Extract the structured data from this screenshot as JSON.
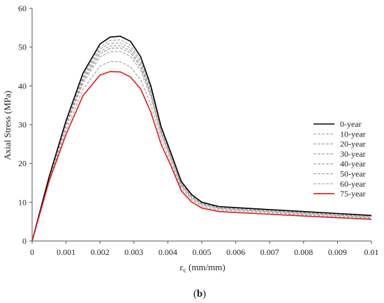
{
  "chart_data": {
    "type": "line",
    "title": "",
    "xlabel": "εc (mm/mm)",
    "ylabel": "Axial Stress  (MPa)",
    "xlim": [
      0,
      0.01
    ],
    "ylim": [
      0,
      60
    ],
    "x_ticks": [
      0,
      0.001,
      0.002,
      0.003,
      0.004,
      0.005,
      0.006,
      0.007,
      0.008,
      0.009,
      0.01
    ],
    "x_tick_labels": [
      "0",
      "0.001",
      "0.002",
      "0.003",
      "0.004",
      "0.005",
      "0.006",
      "0.007",
      "0.008",
      "0.009",
      "0.01"
    ],
    "y_ticks": [
      0,
      10,
      20,
      30,
      40,
      50,
      60
    ],
    "y_tick_labels": [
      "0",
      "10",
      "20",
      "30",
      "40",
      "50",
      "60"
    ],
    "grid": false,
    "legend_position": "right",
    "panel_label": "(b)",
    "panel_label_bold": "b",
    "x": [
      0,
      0.0005,
      0.001,
      0.0015,
      0.002,
      0.0023,
      0.0026,
      0.0029,
      0.0032,
      0.0035,
      0.0038,
      0.0041,
      0.0044,
      0.0047,
      0.005,
      0.0055,
      0.006,
      0.007,
      0.008,
      0.009,
      0.01
    ],
    "series": [
      {
        "name": "0-year",
        "color": "#000000",
        "style": "solid",
        "width": 1.6,
        "values": [
          0,
          16.5,
          31,
          43.3,
          50.8,
          52.6,
          52.8,
          51.5,
          47.5,
          40,
          29.5,
          22.5,
          15.3,
          12,
          10,
          8.9,
          8.6,
          8.1,
          7.6,
          7.1,
          6.6
        ]
      },
      {
        "name": "10-year",
        "color": "#a6a6a6",
        "style": "dashed",
        "width": 1.2,
        "values": [
          0,
          16.4,
          30.7,
          42.8,
          50.1,
          51.7,
          51.9,
          50.5,
          46.6,
          39.2,
          29,
          22.1,
          15,
          11.8,
          9.8,
          8.75,
          8.45,
          7.95,
          7.45,
          6.95,
          6.5
        ]
      },
      {
        "name": "20-year",
        "color": "#a6a6a6",
        "style": "dashed",
        "width": 1.2,
        "values": [
          0,
          16.3,
          30.4,
          42.3,
          49.5,
          51,
          51.1,
          49.8,
          46,
          38.7,
          28.6,
          21.8,
          14.8,
          11.6,
          9.7,
          8.65,
          8.35,
          7.85,
          7.35,
          6.85,
          6.4
        ]
      },
      {
        "name": "30-year",
        "color": "#a6a6a6",
        "style": "dashed",
        "width": 1.2,
        "values": [
          0,
          16.2,
          30.1,
          41.8,
          48.9,
          50.3,
          50.4,
          49.1,
          45.3,
          38.2,
          28.2,
          21.5,
          14.6,
          11.4,
          9.55,
          8.55,
          8.25,
          7.75,
          7.25,
          6.75,
          6.3
        ]
      },
      {
        "name": "40-year",
        "color": "#999999",
        "style": "dashed",
        "width": 1.2,
        "values": [
          0,
          16.1,
          29.8,
          41.3,
          48.3,
          49.7,
          49.8,
          48.5,
          44.8,
          37.7,
          27.9,
          21.3,
          14.4,
          11.3,
          9.45,
          8.45,
          8.15,
          7.65,
          7.15,
          6.65,
          6.2
        ]
      },
      {
        "name": "50-year",
        "color": "#a6a6a6",
        "style": "dashed",
        "width": 1.2,
        "values": [
          0,
          16,
          29.5,
          40.7,
          47.5,
          48.8,
          48.9,
          47.6,
          44,
          37.1,
          27.5,
          21,
          14.2,
          11.1,
          9.3,
          8.35,
          8.05,
          7.55,
          7.05,
          6.55,
          6.1
        ]
      },
      {
        "name": "60-year",
        "color": "#a6a6a6",
        "style": "dashed",
        "width": 1.2,
        "values": [
          0,
          15.7,
          28.5,
          39.1,
          45.1,
          46.3,
          46.2,
          44.9,
          41.6,
          35.2,
          26.3,
          20.1,
          13.6,
          10.7,
          8.9,
          8,
          7.75,
          7.25,
          6.75,
          6.25,
          5.85
        ]
      },
      {
        "name": "75-year",
        "color": "#e31a1c",
        "style": "solid",
        "width": 1.6,
        "values": [
          0,
          15.4,
          27.5,
          37.5,
          42.8,
          43.7,
          43.6,
          42.3,
          39.2,
          33.2,
          25,
          19.2,
          12.9,
          10.1,
          8.5,
          7.6,
          7.35,
          6.9,
          6.45,
          6,
          5.6
        ]
      }
    ]
  }
}
